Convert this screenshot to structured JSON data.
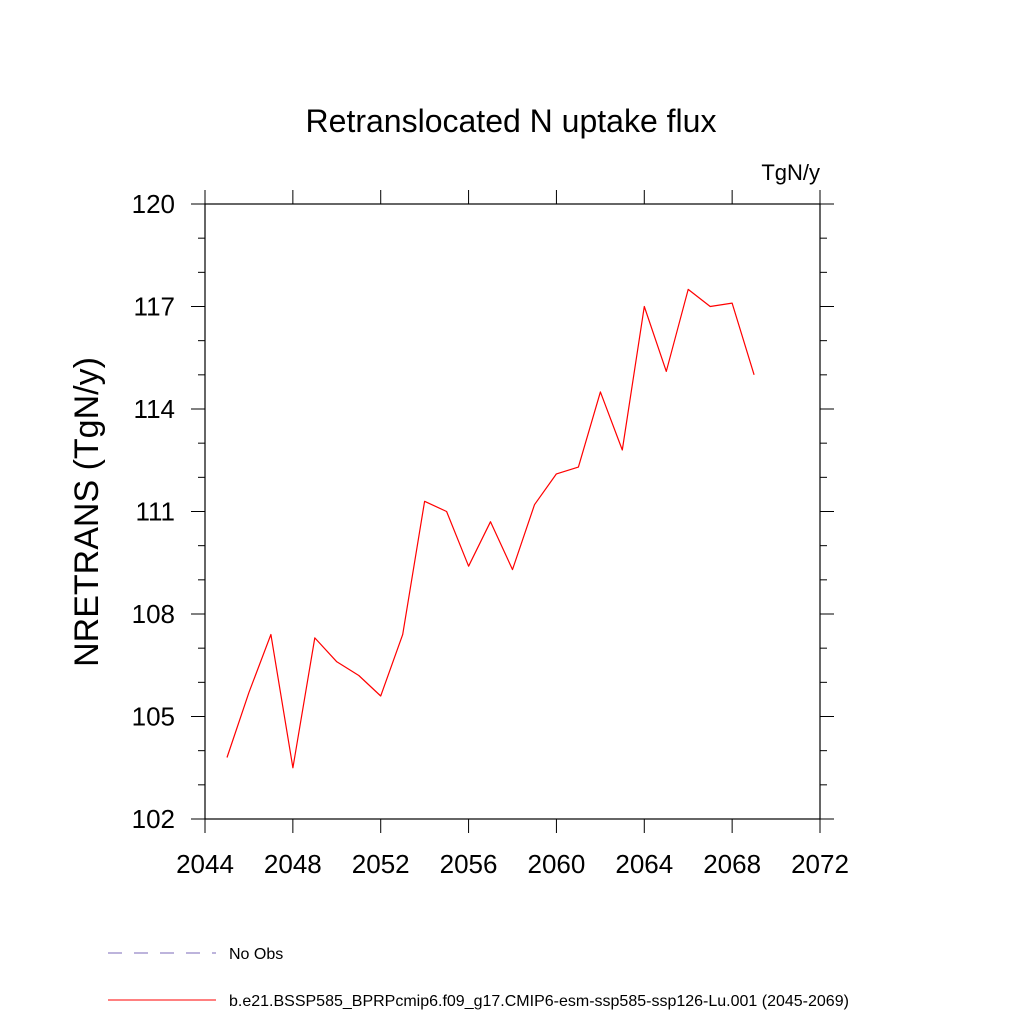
{
  "chart_data": {
    "type": "line",
    "title": "Retranslocated N uptake flux",
    "units": "TgN/y",
    "xlabel": "",
    "ylabel": "NRETRANS  (TgN/y)",
    "xlim": [
      2044,
      2072
    ],
    "ylim": [
      102,
      120
    ],
    "xticks": [
      2044,
      2048,
      2052,
      2056,
      2060,
      2064,
      2068,
      2072
    ],
    "yticks": [
      102,
      105,
      108,
      111,
      114,
      117,
      120
    ],
    "grid": false,
    "legend_position": "bottom",
    "series": [
      {
        "name": "b.e21.BSSP585_BPRPcmip6.f09_g17.CMIP6-esm-ssp585-ssp126-Lu.001 (2045-2069)",
        "color": "#ff0000",
        "style": "solid",
        "x": [
          2045,
          2046,
          2047,
          2048,
          2049,
          2050,
          2051,
          2052,
          2053,
          2054,
          2055,
          2056,
          2057,
          2058,
          2059,
          2060,
          2061,
          2062,
          2063,
          2064,
          2065,
          2066,
          2067,
          2068,
          2069
        ],
        "y": [
          103.8,
          105.7,
          107.4,
          103.5,
          107.3,
          106.6,
          106.2,
          105.6,
          107.4,
          111.3,
          111.0,
          109.4,
          110.7,
          109.3,
          111.2,
          112.1,
          112.3,
          114.5,
          112.8,
          117.0,
          115.1,
          117.5,
          117.0,
          117.1,
          115.0
        ]
      },
      {
        "name": "No Obs",
        "color": "#7b68b8",
        "style": "dashed",
        "x": [],
        "y": []
      }
    ]
  }
}
